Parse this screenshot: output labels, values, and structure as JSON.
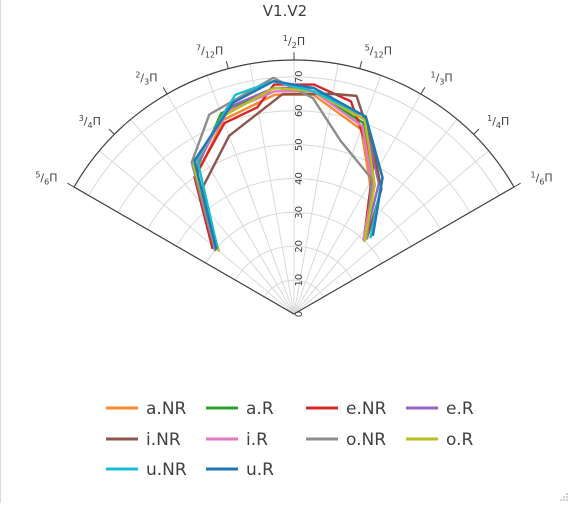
{
  "chart_data": {
    "type": "line",
    "subtype": "polar",
    "title": "V1.V2",
    "angle_axis": {
      "range_degrees": [
        30,
        150
      ],
      "ticks": [
        {
          "deg": 30,
          "num": "1",
          "den": "6"
        },
        {
          "deg": 45,
          "num": "1",
          "den": "4"
        },
        {
          "deg": 60,
          "num": "1",
          "den": "3"
        },
        {
          "deg": 75,
          "num": "5",
          "den": "12"
        },
        {
          "deg": 90,
          "num": "1",
          "den": "2"
        },
        {
          "deg": 105,
          "num": "7",
          "den": "12"
        },
        {
          "deg": 120,
          "num": "2",
          "den": "3"
        },
        {
          "deg": 135,
          "num": "3",
          "den": "4"
        },
        {
          "deg": 150,
          "num": "5",
          "den": "6"
        }
      ],
      "symbol": "Π",
      "grid_step_degrees": 10
    },
    "radial_axis": {
      "range": [
        0,
        75
      ],
      "ticks": [
        0,
        10,
        20,
        30,
        40,
        50,
        60,
        70
      ]
    },
    "legend_position": "bottom",
    "series": [
      {
        "name": "a.NR",
        "color": "#f58a32",
        "points": [
          [
            140,
            30
          ],
          [
            125,
            50
          ],
          [
            110,
            61
          ],
          [
            95,
            65
          ],
          [
            85,
            65
          ],
          [
            70,
            58
          ],
          [
            58,
            43
          ],
          [
            46,
            31
          ]
        ]
      },
      {
        "name": "a.R",
        "color": "#2ca02c",
        "points": [
          [
            141,
            31
          ],
          [
            125,
            51
          ],
          [
            110,
            63
          ],
          [
            95,
            67
          ],
          [
            85,
            66
          ],
          [
            70,
            60
          ],
          [
            58,
            44
          ],
          [
            47,
            31
          ]
        ]
      },
      {
        "name": "e.NR",
        "color": "#d62728",
        "points": [
          [
            141,
            31
          ],
          [
            126,
            50
          ],
          [
            110,
            60
          ],
          [
            100,
            62
          ],
          [
            95,
            68
          ],
          [
            85,
            68
          ],
          [
            75,
            65
          ],
          [
            62,
            50
          ],
          [
            48,
            31
          ]
        ]
      },
      {
        "name": "e.R",
        "color": "#9467bd",
        "points": [
          [
            141,
            30
          ],
          [
            124,
            52
          ],
          [
            108,
            64
          ],
          [
            95,
            67
          ],
          [
            85,
            67
          ],
          [
            70,
            61
          ],
          [
            57,
            46
          ],
          [
            47,
            31
          ]
        ]
      },
      {
        "name": "i.NR",
        "color": "#8c564b",
        "points": [
          [
            141,
            30
          ],
          [
            126,
            46
          ],
          [
            110,
            56
          ],
          [
            93,
            65
          ],
          [
            80,
            66
          ],
          [
            74,
            67
          ],
          [
            65,
            55
          ],
          [
            55,
            45
          ],
          [
            46,
            31
          ]
        ]
      },
      {
        "name": "i.R",
        "color": "#e377c2",
        "points": [
          [
            141,
            30
          ],
          [
            124,
            53
          ],
          [
            108,
            63
          ],
          [
            95,
            66
          ],
          [
            85,
            66
          ],
          [
            70,
            59
          ],
          [
            58,
            44
          ],
          [
            47,
            30
          ]
        ]
      },
      {
        "name": "o.NR",
        "color": "#8c8c8c",
        "points": [
          [
            141,
            30
          ],
          [
            124,
            54
          ],
          [
            113,
            64
          ],
          [
            95,
            70
          ],
          [
            85,
            64
          ],
          [
            75,
            53
          ],
          [
            60,
            46
          ],
          [
            46,
            31
          ]
        ]
      },
      {
        "name": "o.R",
        "color": "#bcbd22",
        "points": [
          [
            140,
            29
          ],
          [
            124,
            53
          ],
          [
            110,
            62
          ],
          [
            95,
            67
          ],
          [
            85,
            66
          ],
          [
            70,
            61
          ],
          [
            58,
            45
          ],
          [
            46,
            30
          ]
        ]
      },
      {
        "name": "u.NR",
        "color": "#17becf",
        "points": [
          [
            139,
            30
          ],
          [
            122,
            54
          ],
          [
            105,
            67
          ],
          [
            95,
            69
          ],
          [
            85,
            66
          ],
          [
            70,
            62
          ],
          [
            57,
            48
          ],
          [
            45,
            32
          ]
        ]
      },
      {
        "name": "u.R",
        "color": "#1f77b4",
        "points": [
          [
            140,
            30
          ],
          [
            123,
            54
          ],
          [
            106,
            65
          ],
          [
            95,
            69
          ],
          [
            85,
            67
          ],
          [
            70,
            62
          ],
          [
            57,
            48
          ],
          [
            45,
            33
          ]
        ]
      }
    ]
  }
}
